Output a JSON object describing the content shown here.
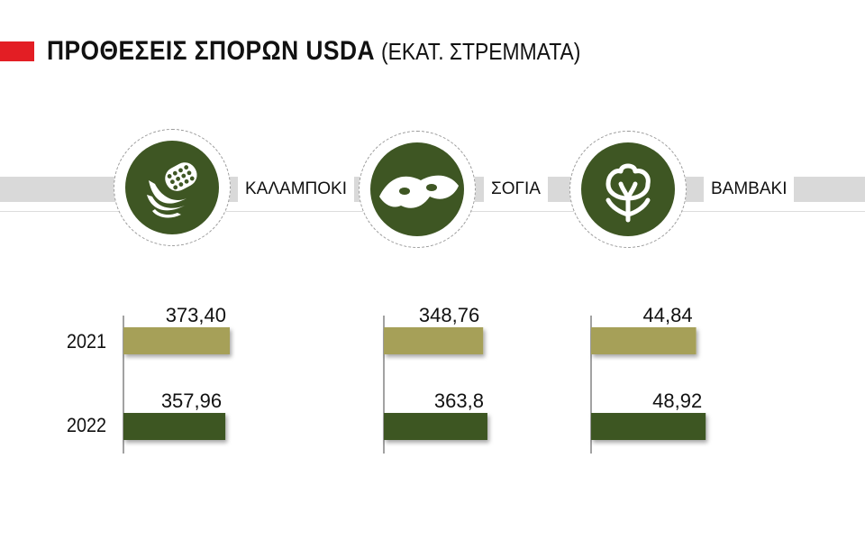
{
  "header": {
    "title": "ΠΡΟΘΕΣΕΙΣ ΣΠΟΡΩΝ USDA",
    "subtitle": "(ΕΚΑΤ. ΣΤΡΕΜΜΑΤΑ)"
  },
  "crops": [
    {
      "label": "ΚΑΛΑΜΠΟΚΙ",
      "icon": "corn-icon"
    },
    {
      "label": "ΣΟΓΙΑ",
      "icon": "soybean-icon"
    },
    {
      "label": "ΒΑΜΒΑΚΙ",
      "icon": "cotton-icon"
    }
  ],
  "colors": {
    "accent": "#e31e24",
    "series_2021": "#a6a058",
    "series_2022": "#3e5623",
    "band": "#d9d9d9"
  },
  "chart_data": {
    "type": "bar",
    "orientation": "horizontal",
    "categories": [
      "ΚΑΛΑΜΠΟΚΙ",
      "ΣΟΓΙΑ",
      "ΒΑΜΒΑΚΙ"
    ],
    "series": [
      {
        "name": "2021",
        "values": [
          373.4,
          348.76,
          44.84
        ],
        "labels": [
          "373,40",
          "348,76",
          "44,84"
        ]
      },
      {
        "name": "2022",
        "values": [
          357.96,
          363.8,
          48.92
        ],
        "labels": [
          "357,96",
          "363,8",
          "48,92"
        ]
      }
    ],
    "legend": "none",
    "grid": false
  }
}
